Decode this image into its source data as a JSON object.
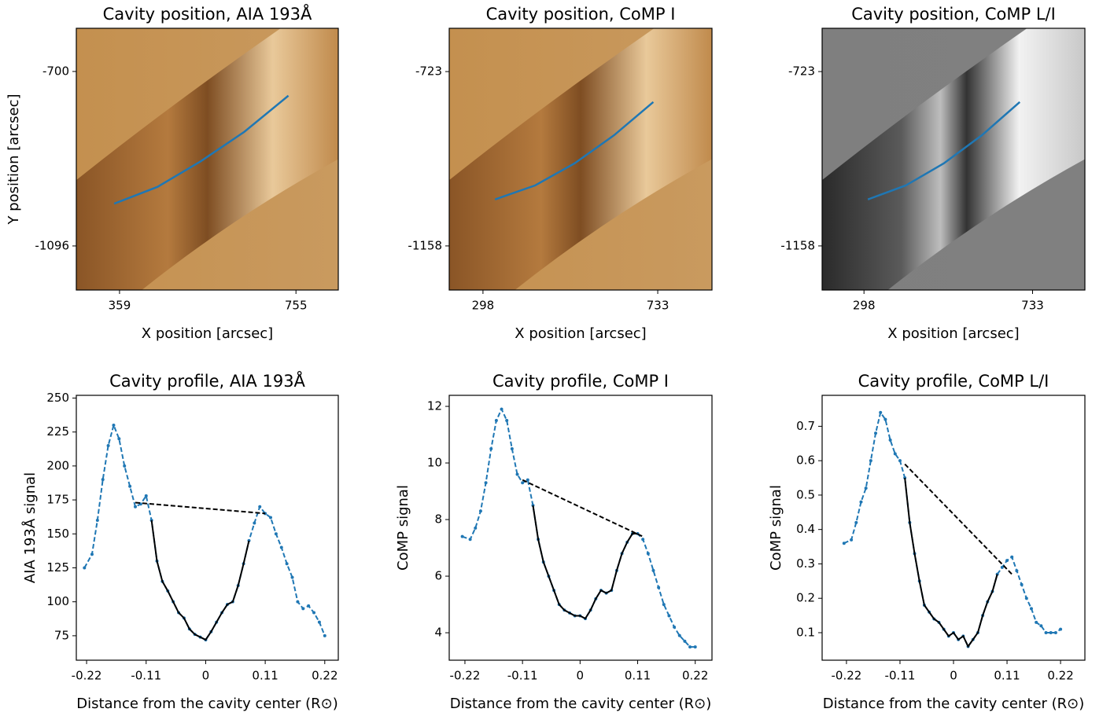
{
  "chart_data": [
    {
      "type": "image",
      "cmap": "copper",
      "title": "Cavity position, AIA 193Å",
      "xlabel": "X position [arcsec]",
      "ylabel": "Y position [arcsec]",
      "xlim": [
        262,
        850
      ],
      "ylim": [
        -1196,
        -602
      ],
      "xticks": [
        359,
        755
      ],
      "yticks": [
        -700,
        -1096
      ],
      "series": [
        {
          "color": "#1f77b4",
          "x": [
            347,
            444,
            541,
            639,
            738
          ],
          "values": [
            -1000,
            -962,
            -904,
            -837,
            -755
          ]
        }
      ]
    },
    {
      "type": "image",
      "cmap": "copper",
      "title": "Cavity position, CoMP I",
      "xlabel": "X position [arcsec]",
      "xlim": [
        214,
        868
      ],
      "ylim": [
        -1268,
        -615
      ],
      "xticks": [
        298,
        733
      ],
      "yticks": [
        -723,
        -1158
      ],
      "series": [
        {
          "color": "#1f77b4",
          "x": [
            328,
            428,
            526,
            624,
            722
          ],
          "values": [
            -1042,
            -1007,
            -952,
            -882,
            -799
          ]
        }
      ]
    },
    {
      "type": "image",
      "cmap": "gray",
      "title": "Cavity position, CoMP L/I",
      "xlabel": "X position [arcsec]",
      "xlim": [
        190,
        868
      ],
      "ylim": [
        -1268,
        -615
      ],
      "xticks": [
        298,
        733
      ],
      "yticks": [
        -723,
        -1158
      ],
      "series": [
        {
          "color": "#1f77b4",
          "x": [
            308,
            406,
            504,
            602,
            700
          ],
          "values": [
            -1042,
            -1007,
            -952,
            -882,
            -799
          ]
        }
      ]
    },
    {
      "type": "line",
      "title": "Cavity profile, AIA 193Å",
      "xlabel": "Distance from the cavity center (R⊙)",
      "ylabel": "AIA 193Å signal",
      "xlim": [
        -0.239,
        0.245
      ],
      "ylim": [
        57,
        252
      ],
      "xticks": [
        -0.22,
        -0.11,
        0,
        0.11,
        0.22
      ],
      "yticks": [
        75,
        100,
        125,
        150,
        175,
        200,
        225,
        250
      ],
      "series": [
        {
          "color": "#1f77b4",
          "style": "dashed",
          "marker": true,
          "x": [
            -0.224,
            -0.21,
            -0.2,
            -0.19,
            -0.18,
            -0.17,
            -0.16,
            -0.15,
            -0.14,
            -0.13,
            -0.12,
            -0.11,
            -0.1,
            -0.09,
            -0.08,
            -0.07,
            -0.06,
            -0.05,
            -0.04,
            -0.03,
            -0.02,
            -0.01,
            0,
            0.01,
            0.02,
            0.03,
            0.04,
            0.05,
            0.06,
            0.07,
            0.08,
            0.09,
            0.1,
            0.11,
            0.12,
            0.13,
            0.14,
            0.15,
            0.16,
            0.17,
            0.18,
            0.19,
            0.2,
            0.21,
            0.22
          ],
          "values": [
            125,
            135,
            160,
            190,
            215,
            230,
            220,
            200,
            185,
            170,
            172,
            178,
            160,
            130,
            115,
            108,
            100,
            92,
            88,
            80,
            76,
            74,
            72,
            78,
            85,
            92,
            98,
            100,
            112,
            128,
            145,
            158,
            170,
            165,
            162,
            150,
            140,
            128,
            118,
            100,
            95,
            97,
            92,
            85,
            75
          ]
        },
        {
          "color": "#000000",
          "style": "solid",
          "x": [
            -0.1,
            -0.09,
            -0.08,
            -0.07,
            -0.06,
            -0.05,
            -0.04,
            -0.03,
            -0.02,
            -0.01,
            0,
            0.01,
            0.02,
            0.03,
            0.04,
            0.05,
            0.06,
            0.07,
            0.08
          ],
          "values": [
            160,
            130,
            115,
            108,
            100,
            92,
            88,
            80,
            76,
            74,
            72,
            78,
            85,
            92,
            98,
            100,
            112,
            128,
            145
          ]
        },
        {
          "color": "#000000",
          "style": "dashed",
          "x": [
            -0.13,
            0.11
          ],
          "values": [
            173,
            165
          ]
        }
      ]
    },
    {
      "type": "line",
      "title": "Cavity profile, CoMP I",
      "xlabel": "Distance from the cavity center (R⊙)",
      "ylabel": "CoMP signal",
      "xlim": [
        -0.25,
        0.252
      ],
      "ylim": [
        3.03,
        12.39
      ],
      "xticks": [
        -0.22,
        -0.11,
        0,
        0.11,
        0.22
      ],
      "yticks": [
        4,
        6,
        8,
        10,
        12
      ],
      "series": [
        {
          "color": "#1f77b4",
          "style": "dashed",
          "marker": true,
          "x": [
            -0.225,
            -0.21,
            -0.2,
            -0.19,
            -0.18,
            -0.17,
            -0.16,
            -0.15,
            -0.14,
            -0.13,
            -0.12,
            -0.11,
            -0.1,
            -0.09,
            -0.08,
            -0.07,
            -0.06,
            -0.05,
            -0.04,
            -0.03,
            -0.02,
            -0.01,
            0,
            0.01,
            0.02,
            0.03,
            0.04,
            0.05,
            0.06,
            0.07,
            0.08,
            0.09,
            0.1,
            0.11,
            0.12,
            0.13,
            0.14,
            0.15,
            0.16,
            0.17,
            0.18,
            0.19,
            0.2,
            0.21,
            0.22
          ],
          "values": [
            7.4,
            7.3,
            7.7,
            8.3,
            9.3,
            10.5,
            11.5,
            11.9,
            11.5,
            10.5,
            9.6,
            9.3,
            9.4,
            8.5,
            7.3,
            6.5,
            6.0,
            5.5,
            5.0,
            4.8,
            4.7,
            4.6,
            4.6,
            4.5,
            4.8,
            5.2,
            5.5,
            5.4,
            5.5,
            6.2,
            6.8,
            7.2,
            7.5,
            7.5,
            7.3,
            6.8,
            6.2,
            5.6,
            5.0,
            4.6,
            4.2,
            3.9,
            3.7,
            3.5,
            3.5
          ]
        },
        {
          "color": "#000000",
          "style": "solid",
          "x": [
            -0.09,
            -0.08,
            -0.07,
            -0.06,
            -0.05,
            -0.04,
            -0.03,
            -0.02,
            -0.01,
            0,
            0.01,
            0.02,
            0.03,
            0.04,
            0.05,
            0.06,
            0.07,
            0.08,
            0.09,
            0.1,
            0.11
          ],
          "values": [
            8.5,
            7.3,
            6.5,
            6.0,
            5.5,
            5.0,
            4.8,
            4.7,
            4.6,
            4.6,
            4.5,
            4.8,
            5.2,
            5.5,
            5.4,
            5.5,
            6.2,
            6.8,
            7.2,
            7.5,
            7.5
          ]
        },
        {
          "color": "#000000",
          "style": "dashed",
          "x": [
            -0.11,
            0.12
          ],
          "values": [
            9.4,
            7.4
          ]
        }
      ]
    },
    {
      "type": "line",
      "title": "Cavity profile, CoMP L/I",
      "xlabel": "Distance from the cavity center (R⊙)",
      "ylabel": "CoMP signal",
      "xlim": [
        -0.27,
        0.27
      ],
      "ylim": [
        0.02,
        0.79
      ],
      "xticks": [
        -0.22,
        -0.11,
        0,
        0.11,
        0.22
      ],
      "yticks": [
        0.1,
        0.2,
        0.3,
        0.4,
        0.5,
        0.6,
        0.7
      ],
      "series": [
        {
          "color": "#1f77b4",
          "style": "dashed",
          "marker": true,
          "x": [
            -0.225,
            -0.21,
            -0.2,
            -0.19,
            -0.18,
            -0.17,
            -0.16,
            -0.15,
            -0.14,
            -0.13,
            -0.12,
            -0.11,
            -0.1,
            -0.09,
            -0.08,
            -0.07,
            -0.06,
            -0.05,
            -0.04,
            -0.03,
            -0.02,
            -0.01,
            0,
            0.01,
            0.02,
            0.03,
            0.04,
            0.05,
            0.06,
            0.07,
            0.08,
            0.09,
            0.1,
            0.11,
            0.12,
            0.13,
            0.14,
            0.15,
            0.16,
            0.17,
            0.18,
            0.19,
            0.2,
            0.21,
            0.22
          ],
          "values": [
            0.36,
            0.37,
            0.42,
            0.48,
            0.52,
            0.6,
            0.68,
            0.74,
            0.72,
            0.66,
            0.62,
            0.6,
            0.55,
            0.42,
            0.33,
            0.25,
            0.18,
            0.16,
            0.14,
            0.13,
            0.11,
            0.09,
            0.1,
            0.08,
            0.09,
            0.06,
            0.08,
            0.1,
            0.15,
            0.19,
            0.22,
            0.27,
            0.29,
            0.31,
            0.32,
            0.28,
            0.24,
            0.2,
            0.17,
            0.13,
            0.12,
            0.1,
            0.1,
            0.1,
            0.11
          ]
        },
        {
          "color": "#000000",
          "style": "solid",
          "x": [
            -0.1,
            -0.09,
            -0.08,
            -0.07,
            -0.06,
            -0.05,
            -0.04,
            -0.03,
            -0.02,
            -0.01,
            0,
            0.01,
            0.02,
            0.03,
            0.04,
            0.05,
            0.06,
            0.07,
            0.08,
            0.09
          ],
          "values": [
            0.55,
            0.42,
            0.33,
            0.25,
            0.18,
            0.16,
            0.14,
            0.13,
            0.11,
            0.09,
            0.1,
            0.08,
            0.09,
            0.06,
            0.08,
            0.1,
            0.15,
            0.19,
            0.22,
            0.27
          ]
        },
        {
          "color": "#000000",
          "style": "dashed",
          "x": [
            -0.1,
            0.12
          ],
          "values": [
            0.59,
            0.27
          ]
        }
      ]
    }
  ]
}
